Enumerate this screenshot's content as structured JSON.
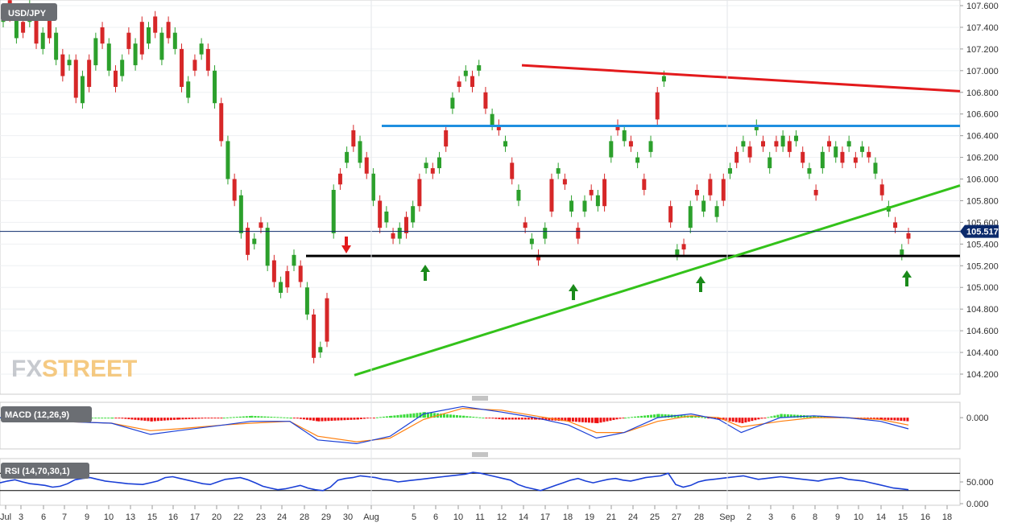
{
  "symbol": "USD/JPY",
  "watermark": {
    "fx": "FX",
    "street": "STREET"
  },
  "colors": {
    "up": "#2ca02c",
    "down": "#d62728",
    "resistance_red": "#e31a1c",
    "range_top_blue": "#1f8fe0",
    "support_black": "#000000",
    "trend_green": "#33c21a",
    "arrow_green": "#1a8a1a",
    "arrow_red": "#e31a1c",
    "macd_line": "#1a3fd6",
    "signal_line": "#ff7f0e",
    "hist_pos": "#3ddc3d",
    "hist_neg": "#ee1111",
    "rsi_line": "#1a3fd6"
  },
  "price_axis": {
    "labels": [
      "107.600",
      "107.400",
      "107.200",
      "107.000",
      "106.800",
      "106.600",
      "106.400",
      "106.200",
      "106.000",
      "105.800",
      "105.600",
      "105.400",
      "105.200",
      "105.000",
      "104.800",
      "104.600",
      "104.400",
      "104.200"
    ],
    "current": "105.517"
  },
  "x_axis": {
    "labels": [
      "Jul",
      "3",
      "6",
      "7",
      "9",
      "10",
      "13",
      "15",
      "16",
      "17",
      "20",
      "22",
      "23",
      "24",
      "28",
      "29",
      "30",
      "Aug",
      "5",
      "6",
      "10",
      "11",
      "12",
      "14",
      "17",
      "18",
      "19",
      "21",
      "24",
      "25",
      "27",
      "28",
      "Sep",
      "2",
      "3",
      "6",
      "8",
      "9",
      "10",
      "14",
      "15",
      "16",
      "18"
    ]
  },
  "macd": {
    "title": "MACD (12,26,9)",
    "zero_label": "0.000"
  },
  "rsi": {
    "title": "RSI (14,70,30,1)",
    "labels": [
      "50.000",
      "0.000"
    ]
  },
  "chart_data": [
    {
      "type": "candlestick",
      "title": "USD/JPY",
      "ylim": [
        104.1,
        107.65
      ],
      "levels": {
        "resistance_top": 106.49,
        "support": 105.29,
        "falling_trendline": [
          107.05,
          106.81
        ],
        "rising_trendline": [
          104.19,
          105.94
        ],
        "last_price": 105.517
      },
      "path": [
        [
          107.45,
          107.52
        ],
        [
          107.5,
          107.65
        ],
        [
          107.3,
          107.55
        ],
        [
          107.35,
          107.45
        ],
        [
          107.45,
          107.6
        ],
        [
          107.25,
          107.55
        ],
        [
          107.2,
          107.35
        ],
        [
          107.3,
          107.55
        ],
        [
          107.1,
          107.35
        ],
        [
          106.95,
          107.15
        ],
        [
          107.05,
          107.1
        ],
        [
          106.75,
          107.1
        ],
        [
          106.7,
          106.95
        ],
        [
          106.85,
          107.1
        ],
        [
          107.05,
          107.3
        ],
        [
          107.25,
          107.4
        ],
        [
          107.0,
          107.25
        ],
        [
          106.85,
          107.0
        ],
        [
          106.95,
          107.1
        ],
        [
          107.2,
          107.35
        ],
        [
          107.05,
          107.25
        ],
        [
          107.15,
          107.45
        ],
        [
          107.25,
          107.4
        ],
        [
          107.35,
          107.5
        ],
        [
          107.1,
          107.35
        ],
        [
          107.3,
          107.45
        ],
        [
          107.2,
          107.35
        ],
        [
          106.85,
          107.2
        ],
        [
          106.75,
          106.9
        ],
        [
          107.0,
          107.1
        ],
        [
          107.15,
          107.25
        ],
        [
          107.0,
          107.2
        ],
        [
          106.7,
          107.0
        ],
        [
          106.35,
          106.7
        ],
        [
          106.0,
          106.35
        ],
        [
          105.8,
          106.0
        ],
        [
          105.5,
          105.85
        ],
        [
          105.3,
          105.55
        ],
        [
          105.4,
          105.45
        ],
        [
          105.55,
          105.6
        ],
        [
          105.2,
          105.55
        ],
        [
          105.05,
          105.25
        ],
        [
          104.95,
          105.05
        ],
        [
          105.0,
          105.15
        ],
        [
          105.2,
          105.3
        ],
        [
          105.05,
          105.2
        ],
        [
          104.75,
          105.0
        ],
        [
          104.35,
          104.75
        ],
        [
          104.4,
          104.45
        ],
        [
          104.5,
          104.9
        ],
        [
          105.5,
          105.9
        ],
        [
          105.95,
          106.05
        ],
        [
          106.15,
          106.25
        ],
        [
          106.3,
          106.45
        ],
        [
          106.15,
          106.35
        ],
        [
          106.05,
          106.2
        ],
        [
          105.8,
          106.05
        ],
        [
          105.55,
          105.8
        ],
        [
          105.6,
          105.7
        ],
        [
          105.45,
          105.5
        ],
        [
          105.45,
          105.55
        ],
        [
          105.5,
          105.65
        ],
        [
          105.6,
          105.75
        ],
        [
          105.75,
          106.0
        ],
        [
          106.1,
          106.15
        ],
        [
          106.05,
          106.1
        ],
        [
          106.1,
          106.2
        ],
        [
          106.3,
          106.45
        ],
        [
          106.65,
          106.75
        ],
        [
          106.85,
          106.9
        ],
        [
          106.95,
          107.0
        ],
        [
          106.85,
          106.95
        ],
        [
          107.0,
          107.05
        ],
        [
          106.65,
          106.8
        ],
        [
          106.5,
          106.6
        ],
        [
          106.45,
          106.5
        ],
        [
          106.3,
          106.35
        ],
        [
          106.0,
          106.15
        ],
        [
          105.8,
          105.9
        ],
        [
          105.55,
          105.6
        ],
        [
          105.4,
          105.45
        ],
        [
          105.25,
          105.3
        ],
        [
          105.45,
          105.55
        ],
        [
          105.7,
          106.0
        ],
        [
          106.05,
          106.1
        ],
        [
          105.95,
          106.0
        ],
        [
          105.7,
          105.8
        ],
        [
          105.45,
          105.55
        ],
        [
          105.7,
          105.8
        ],
        [
          105.85,
          105.9
        ],
        [
          105.75,
          105.85
        ],
        [
          105.75,
          106.0
        ],
        [
          106.2,
          106.35
        ],
        [
          106.45,
          106.5
        ],
        [
          106.35,
          106.45
        ],
        [
          106.3,
          106.35
        ],
        [
          106.15,
          106.2
        ],
        [
          105.9,
          106.0
        ],
        [
          106.25,
          106.35
        ],
        [
          106.55,
          106.8
        ],
        [
          106.95,
          106.9
        ],
        [
          105.6,
          105.75
        ],
        [
          105.3,
          105.35
        ],
        [
          105.35,
          105.4
        ],
        [
          105.55,
          105.75
        ],
        [
          105.85,
          105.9
        ],
        [
          105.7,
          105.8
        ],
        [
          105.85,
          106.0
        ],
        [
          105.65,
          105.75
        ],
        [
          105.8,
          106.0
        ],
        [
          106.05,
          106.1
        ],
        [
          106.15,
          106.25
        ],
        [
          106.3,
          106.35
        ],
        [
          106.2,
          106.3
        ],
        [
          106.45,
          106.5
        ],
        [
          106.3,
          106.35
        ],
        [
          106.1,
          106.2
        ],
        [
          106.3,
          106.35
        ],
        [
          106.3,
          106.4
        ],
        [
          106.25,
          106.35
        ],
        [
          106.35,
          106.4
        ],
        [
          106.15,
          106.25
        ],
        [
          106.05,
          106.1
        ],
        [
          105.85,
          105.9
        ],
        [
          106.1,
          106.25
        ],
        [
          106.3,
          106.35
        ],
        [
          106.2,
          106.3
        ],
        [
          106.15,
          106.25
        ],
        [
          106.3,
          106.35
        ],
        [
          106.15,
          106.2
        ],
        [
          106.25,
          106.3
        ],
        [
          106.2,
          106.25
        ],
        [
          106.05,
          106.15
        ],
        [
          105.85,
          105.95
        ],
        [
          105.7,
          105.75
        ],
        [
          105.55,
          105.6
        ],
        [
          105.3,
          105.35
        ],
        [
          105.45,
          105.5
        ]
      ]
    },
    {
      "type": "line",
      "title": "MACD (12,26,9)",
      "ylim": [
        -0.16,
        0.07
      ],
      "macd_path": [
        [
          0,
          0.0
        ],
        [
          0.1,
          -0.02
        ],
        [
          0.2,
          -0.03
        ],
        [
          0.27,
          -0.09
        ],
        [
          0.32,
          -0.07
        ],
        [
          0.4,
          -0.04
        ],
        [
          0.45,
          -0.02
        ],
        [
          0.52,
          -0.02
        ],
        [
          0.57,
          -0.12
        ],
        [
          0.64,
          -0.14
        ],
        [
          0.7,
          -0.1
        ],
        [
          0.76,
          0.02
        ],
        [
          0.83,
          0.06
        ],
        [
          0.9,
          0.03
        ],
        [
          0.96,
          0.0
        ],
        [
          1.02,
          -0.04
        ],
        [
          1.07,
          -0.11
        ],
        [
          1.12,
          -0.08
        ],
        [
          1.18,
          0.0
        ],
        [
          1.24,
          0.02
        ],
        [
          1.29,
          -0.01
        ],
        [
          1.33,
          -0.08
        ],
        [
          1.4,
          0.0
        ],
        [
          1.46,
          0.01
        ],
        [
          1.52,
          0.0
        ],
        [
          1.58,
          -0.02
        ],
        [
          1.63,
          -0.06
        ]
      ],
      "signal_path": [
        [
          0,
          0.0
        ],
        [
          0.1,
          -0.02
        ],
        [
          0.2,
          -0.03
        ],
        [
          0.27,
          -0.07
        ],
        [
          0.32,
          -0.06
        ],
        [
          0.4,
          -0.04
        ],
        [
          0.45,
          -0.03
        ],
        [
          0.52,
          -0.02
        ],
        [
          0.57,
          -0.1
        ],
        [
          0.64,
          -0.13
        ],
        [
          0.7,
          -0.11
        ],
        [
          0.76,
          -0.01
        ],
        [
          0.83,
          0.05
        ],
        [
          0.9,
          0.04
        ],
        [
          0.96,
          0.01
        ],
        [
          1.02,
          -0.02
        ],
        [
          1.07,
          -0.08
        ],
        [
          1.12,
          -0.08
        ],
        [
          1.18,
          -0.02
        ],
        [
          1.24,
          0.01
        ],
        [
          1.29,
          0.0
        ],
        [
          1.33,
          -0.05
        ],
        [
          1.4,
          -0.02
        ],
        [
          1.46,
          0.0
        ],
        [
          1.52,
          0.0
        ],
        [
          1.58,
          -0.01
        ],
        [
          1.63,
          -0.04
        ]
      ]
    },
    {
      "type": "line",
      "title": "RSI (14,70,30,1)",
      "ylim": [
        0,
        100
      ],
      "levels": [
        70,
        30
      ],
      "values": [
        48,
        52,
        55,
        50,
        46,
        44,
        42,
        38,
        40,
        46,
        55,
        58,
        60,
        56,
        52,
        50,
        48,
        46,
        45,
        44,
        48,
        52,
        60,
        62,
        58,
        54,
        50,
        46,
        44,
        50,
        56,
        58,
        60,
        55,
        48,
        40,
        36,
        32,
        34,
        38,
        42,
        36,
        32,
        30,
        38,
        54,
        58,
        60,
        64,
        62,
        60,
        56,
        54,
        50,
        52,
        54,
        56,
        58,
        60,
        62,
        64,
        66,
        68,
        72,
        70,
        66,
        62,
        58,
        54,
        44,
        38,
        34,
        30,
        36,
        42,
        48,
        54,
        58,
        52,
        48,
        52,
        56,
        58,
        54,
        52,
        56,
        60,
        62,
        64,
        70,
        44,
        38,
        42,
        50,
        54,
        56,
        58,
        60,
        62,
        64,
        60,
        56,
        58,
        60,
        62,
        60,
        58,
        56,
        54,
        52,
        56,
        58,
        60,
        56,
        54,
        52,
        48,
        44,
        40,
        36,
        34,
        32
      ]
    }
  ]
}
